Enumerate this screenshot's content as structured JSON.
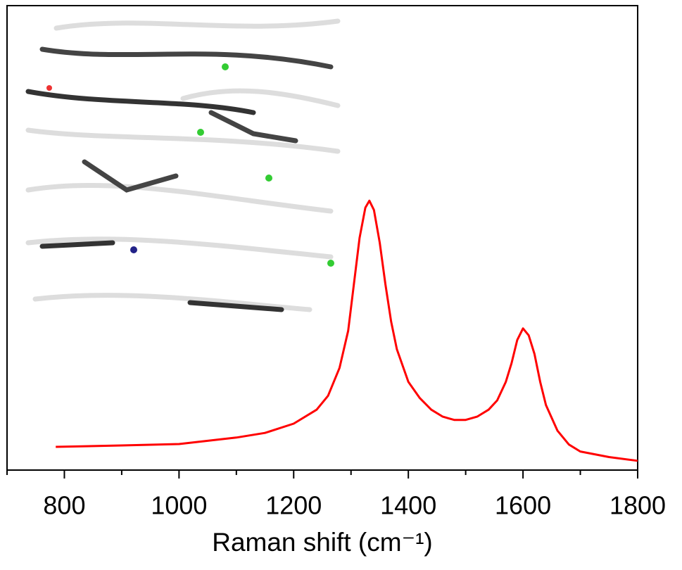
{
  "chart_data": {
    "type": "line",
    "xlabel": "Raman shift (cm⁻¹)",
    "x": [
      785,
      900,
      1000,
      1100,
      1150,
      1200,
      1240,
      1260,
      1280,
      1295,
      1305,
      1315,
      1325,
      1332,
      1340,
      1350,
      1360,
      1370,
      1380,
      1400,
      1420,
      1440,
      1460,
      1480,
      1500,
      1520,
      1540,
      1555,
      1570,
      1580,
      1590,
      1600,
      1610,
      1620,
      1630,
      1640,
      1660,
      1680,
      1700,
      1750,
      1800
    ],
    "values": [
      5.0,
      5.3,
      5.6,
      7.0,
      8.0,
      10.0,
      13.0,
      16.0,
      22.0,
      30.0,
      40.0,
      50.0,
      56.5,
      58.0,
      56.0,
      49.0,
      40.0,
      32.0,
      26.0,
      19.0,
      15.5,
      13.0,
      11.5,
      10.8,
      10.8,
      11.5,
      13.0,
      15.0,
      19.0,
      23.0,
      28.0,
      30.5,
      29.0,
      25.0,
      19.0,
      14.0,
      8.5,
      5.5,
      4.0,
      2.8,
      2.0
    ],
    "color": "#ff0000",
    "xlim": [
      700,
      1800
    ],
    "xticks": [
      800,
      1000,
      1200,
      1400,
      1600,
      1800
    ],
    "xminorticks": [
      700,
      900,
      1100,
      1300,
      1500,
      1700
    ],
    "ylim": [
      0,
      100
    ]
  }
}
